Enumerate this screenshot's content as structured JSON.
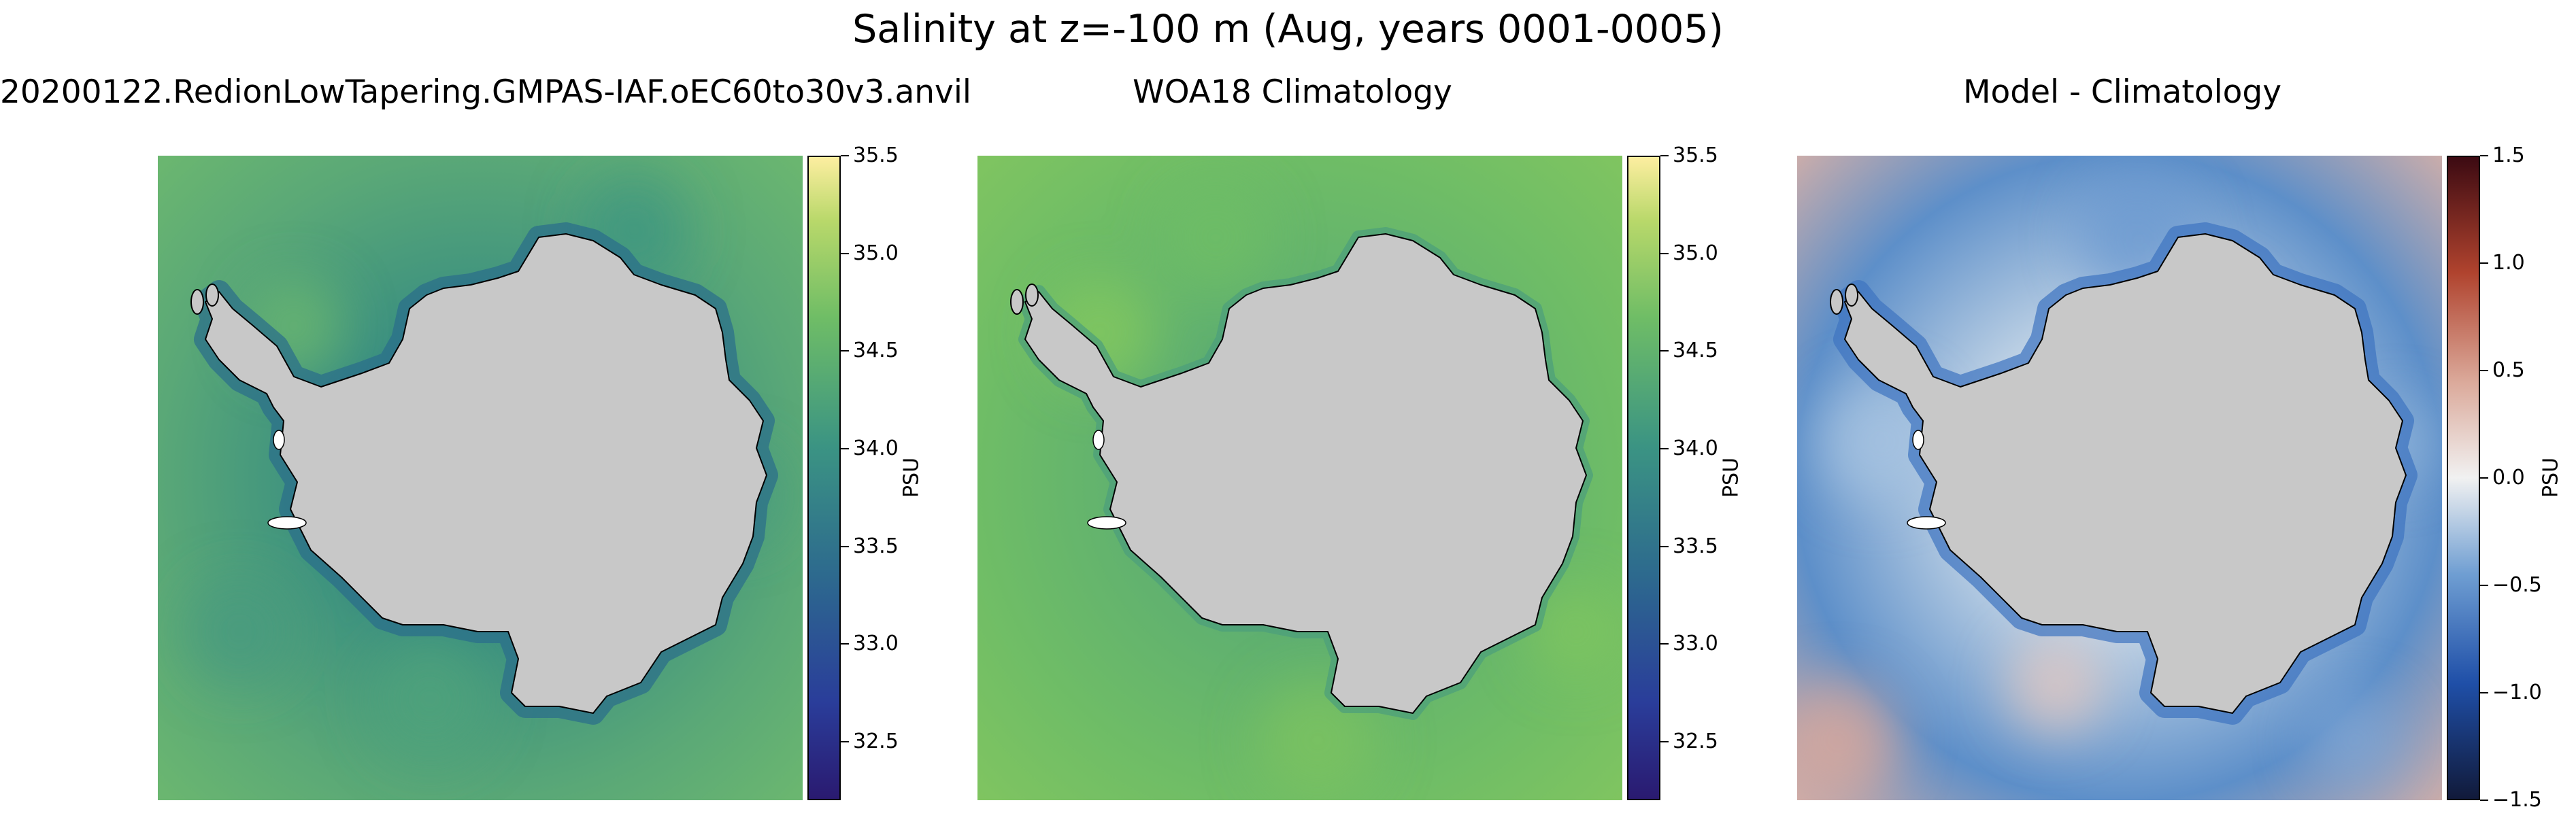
{
  "figure": {
    "title": "Salinity at z=-100 m (Aug, years 0001-0005)"
  },
  "panels": [
    {
      "title": "20200122.RedionLowTapering.GMPAS-IAF.oEC60to30v3.anvil",
      "colorbar_label": "PSU",
      "colormap": "haline",
      "land_color": "#c8c8c8",
      "ocean_colors": [
        "#2f7d89",
        "#3b9080",
        "#5aa877",
        "#6fba6e"
      ],
      "colorbar": {
        "min": 32.2,
        "max": 35.5,
        "ticks": [
          "32.5",
          "33.0",
          "33.5",
          "34.0",
          "34.5",
          "35.0",
          "35.5"
        ]
      }
    },
    {
      "title": "WOA18 Climatology",
      "colorbar_label": "PSU",
      "colormap": "haline",
      "land_color": "#c8c8c8",
      "ocean_colors": [
        "#4e9f7a",
        "#5fb070",
        "#6fbd66",
        "#83c65f"
      ],
      "colorbar": {
        "min": 32.2,
        "max": 35.5,
        "ticks": [
          "32.5",
          "33.0",
          "33.5",
          "34.0",
          "34.5",
          "35.0",
          "35.5"
        ]
      }
    },
    {
      "title": "Model - Climatology",
      "colorbar_label": "PSU",
      "colormap": "balance",
      "land_color": "#c8c8c8",
      "ocean_colors": [
        "#dde6ef",
        "#bcd0e4",
        "#5d8fc9",
        "#e2b3a4"
      ],
      "colorbar": {
        "min": -1.5,
        "max": 1.5,
        "ticks": [
          "−1.5",
          "−1.0",
          "−0.5",
          "0.0",
          "0.5",
          "1.0",
          "1.5"
        ]
      }
    }
  ]
}
